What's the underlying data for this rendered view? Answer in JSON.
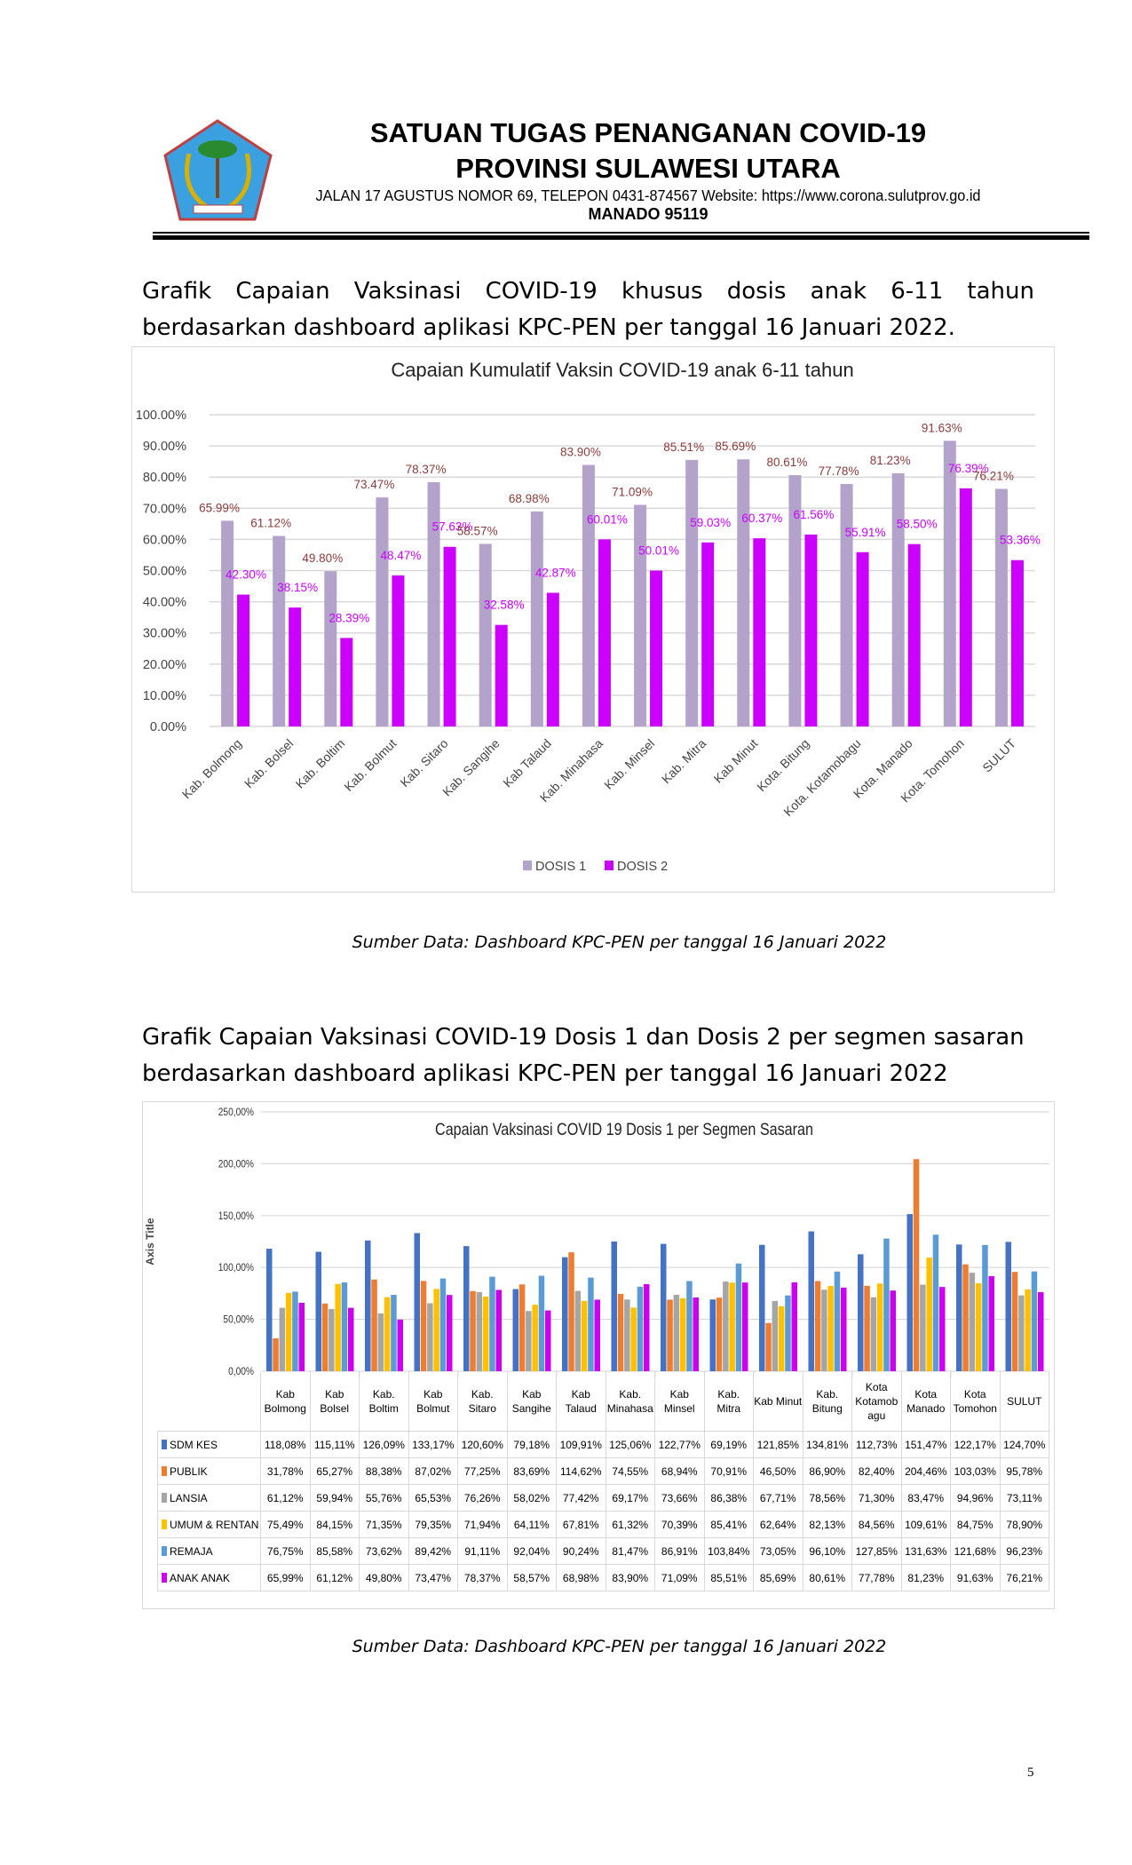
{
  "header": {
    "title_line1": "SATUAN TUGAS PENANGANAN COVID-19",
    "title_line2": "PROVINSI SULAWESI UTARA",
    "address": "JALAN 17 AGUSTUS NOMOR 69, TELEPON 0431-874567 Website: https://www.corona.sulutprov.go.id",
    "city": "MANADO  95119",
    "logo_text": "SULAWESI UTARA"
  },
  "section1": {
    "paragraph_line1": "Grafik Capaian Vaksinasi COVID-19 khusus dosis anak 6-11 tahun",
    "paragraph_line2": "berdasarkan dashboard aplikasi KPC-PEN per tanggal 16 Januari 2022.",
    "source": "Sumber Data: Dashboard KPC-PEN per tanggal 16 Januari 2022"
  },
  "section2": {
    "paragraph_line1": "Grafik Capaian Vaksinasi COVID-19 Dosis 1 dan Dosis 2 per segmen sasaran",
    "paragraph_line2": "berdasarkan dashboard aplikasi KPC-PEN per tanggal 16 Januari 2022",
    "source": "Sumber Data: Dashboard KPC-PEN per tanggal 16 Januari 2022"
  },
  "page_number": "5",
  "chart_data": [
    {
      "type": "bar",
      "title": "Capaian Kumulatif Vaksin COVID-19 anak 6-11 tahun",
      "xlabel": "",
      "ylabel": "",
      "ylim": [
        0,
        100
      ],
      "yticks": [
        "0.00%",
        "10.00%",
        "20.00%",
        "30.00%",
        "40.00%",
        "50.00%",
        "60.00%",
        "70.00%",
        "80.00%",
        "90.00%",
        "100.00%"
      ],
      "legend": "bottom",
      "grid": true,
      "categories": [
        "Kab. Bolmong",
        "Kab. Bolsel",
        "Kab. Boltim",
        "Kab. Bolmut",
        "Kab. Sitaro",
        "Kab. Sangihe",
        "Kab Talaud",
        "Kab. Minahasa",
        "Kab. Minsel",
        "Kab. Mitra",
        "Kab Minut",
        "Kota. Bitung",
        "Kota. Kotamobagu",
        "Kota. Manado",
        "Kota. Tomohon",
        "SULUT"
      ],
      "series": [
        {
          "name": "DOSIS 1",
          "color": "#b3a2c9",
          "label_color": "#8b3b3b",
          "values": [
            65.99,
            61.12,
            49.8,
            73.47,
            78.37,
            58.57,
            68.98,
            83.9,
            71.09,
            85.51,
            85.69,
            80.61,
            77.78,
            81.23,
            91.63,
            76.21
          ]
        },
        {
          "name": "DOSIS 2",
          "color": "#cc00ff",
          "label_color": "#cc00ff",
          "values": [
            42.3,
            38.15,
            28.39,
            48.47,
            57.63,
            32.58,
            42.87,
            60.01,
            50.01,
            59.03,
            60.37,
            61.56,
            55.91,
            58.5,
            76.39,
            53.36
          ]
        }
      ]
    },
    {
      "type": "bar",
      "title": "Capaian Vaksinasi COVID 19 Dosis 1 per Segmen Sasaran",
      "xlabel": "",
      "ylabel": "Axis Title",
      "ylim": [
        0,
        250
      ],
      "yticks": [
        "0,00%",
        "50,00%",
        "100,00%",
        "150,00%",
        "200,00%",
        "250,00%"
      ],
      "legend": "data-table",
      "grid": true,
      "categories": [
        "Kab Bolmong",
        "Kab Bolsel",
        "Kab. Boltim",
        "Kab Bolmut",
        "Kab. Sitaro",
        "Kab Sangihe",
        "Kab Talaud",
        "Kab. Minahasa",
        "Kab Minsel",
        "Kab. Mitra",
        "Kab Minut",
        "Kab. Bitung",
        "Kota Kotamob agu",
        "Kota Manado",
        "Kota Tomohon",
        "SULUT"
      ],
      "series": [
        {
          "name": "SDM KES",
          "color": "#4472c4",
          "values": [
            118.08,
            115.11,
            126.09,
            133.17,
            120.6,
            79.18,
            109.91,
            125.06,
            122.77,
            69.19,
            121.85,
            134.81,
            112.73,
            151.47,
            122.17,
            124.7
          ]
        },
        {
          "name": "PUBLIK",
          "color": "#ed7d31",
          "values": [
            31.78,
            65.27,
            88.38,
            87.02,
            77.25,
            83.69,
            114.62,
            74.55,
            68.94,
            70.91,
            46.5,
            86.9,
            82.4,
            204.46,
            103.03,
            95.78
          ]
        },
        {
          "name": "LANSIA",
          "color": "#a5a5a5",
          "values": [
            61.12,
            59.94,
            55.76,
            65.53,
            76.26,
            58.02,
            77.42,
            69.17,
            73.66,
            86.38,
            67.71,
            78.56,
            71.3,
            83.47,
            94.96,
            73.11
          ]
        },
        {
          "name": "UMUM & RENTAN",
          "color": "#ffc000",
          "values": [
            75.49,
            84.15,
            71.35,
            79.35,
            71.94,
            64.11,
            67.81,
            61.32,
            70.39,
            85.41,
            62.64,
            82.13,
            84.56,
            109.61,
            84.75,
            78.9
          ]
        },
        {
          "name": "REMAJA",
          "color": "#5b9bd5",
          "values": [
            76.75,
            85.58,
            73.62,
            89.42,
            91.11,
            92.04,
            90.24,
            81.47,
            86.91,
            103.84,
            73.05,
            96.1,
            127.85,
            131.63,
            121.68,
            96.23
          ]
        },
        {
          "name": "ANAK ANAK",
          "color": "#cc00ee",
          "values": [
            65.99,
            61.12,
            49.8,
            73.47,
            78.37,
            58.57,
            68.98,
            83.9,
            71.09,
            85.51,
            85.69,
            80.61,
            77.78,
            81.23,
            91.63,
            76.21
          ]
        }
      ]
    }
  ]
}
